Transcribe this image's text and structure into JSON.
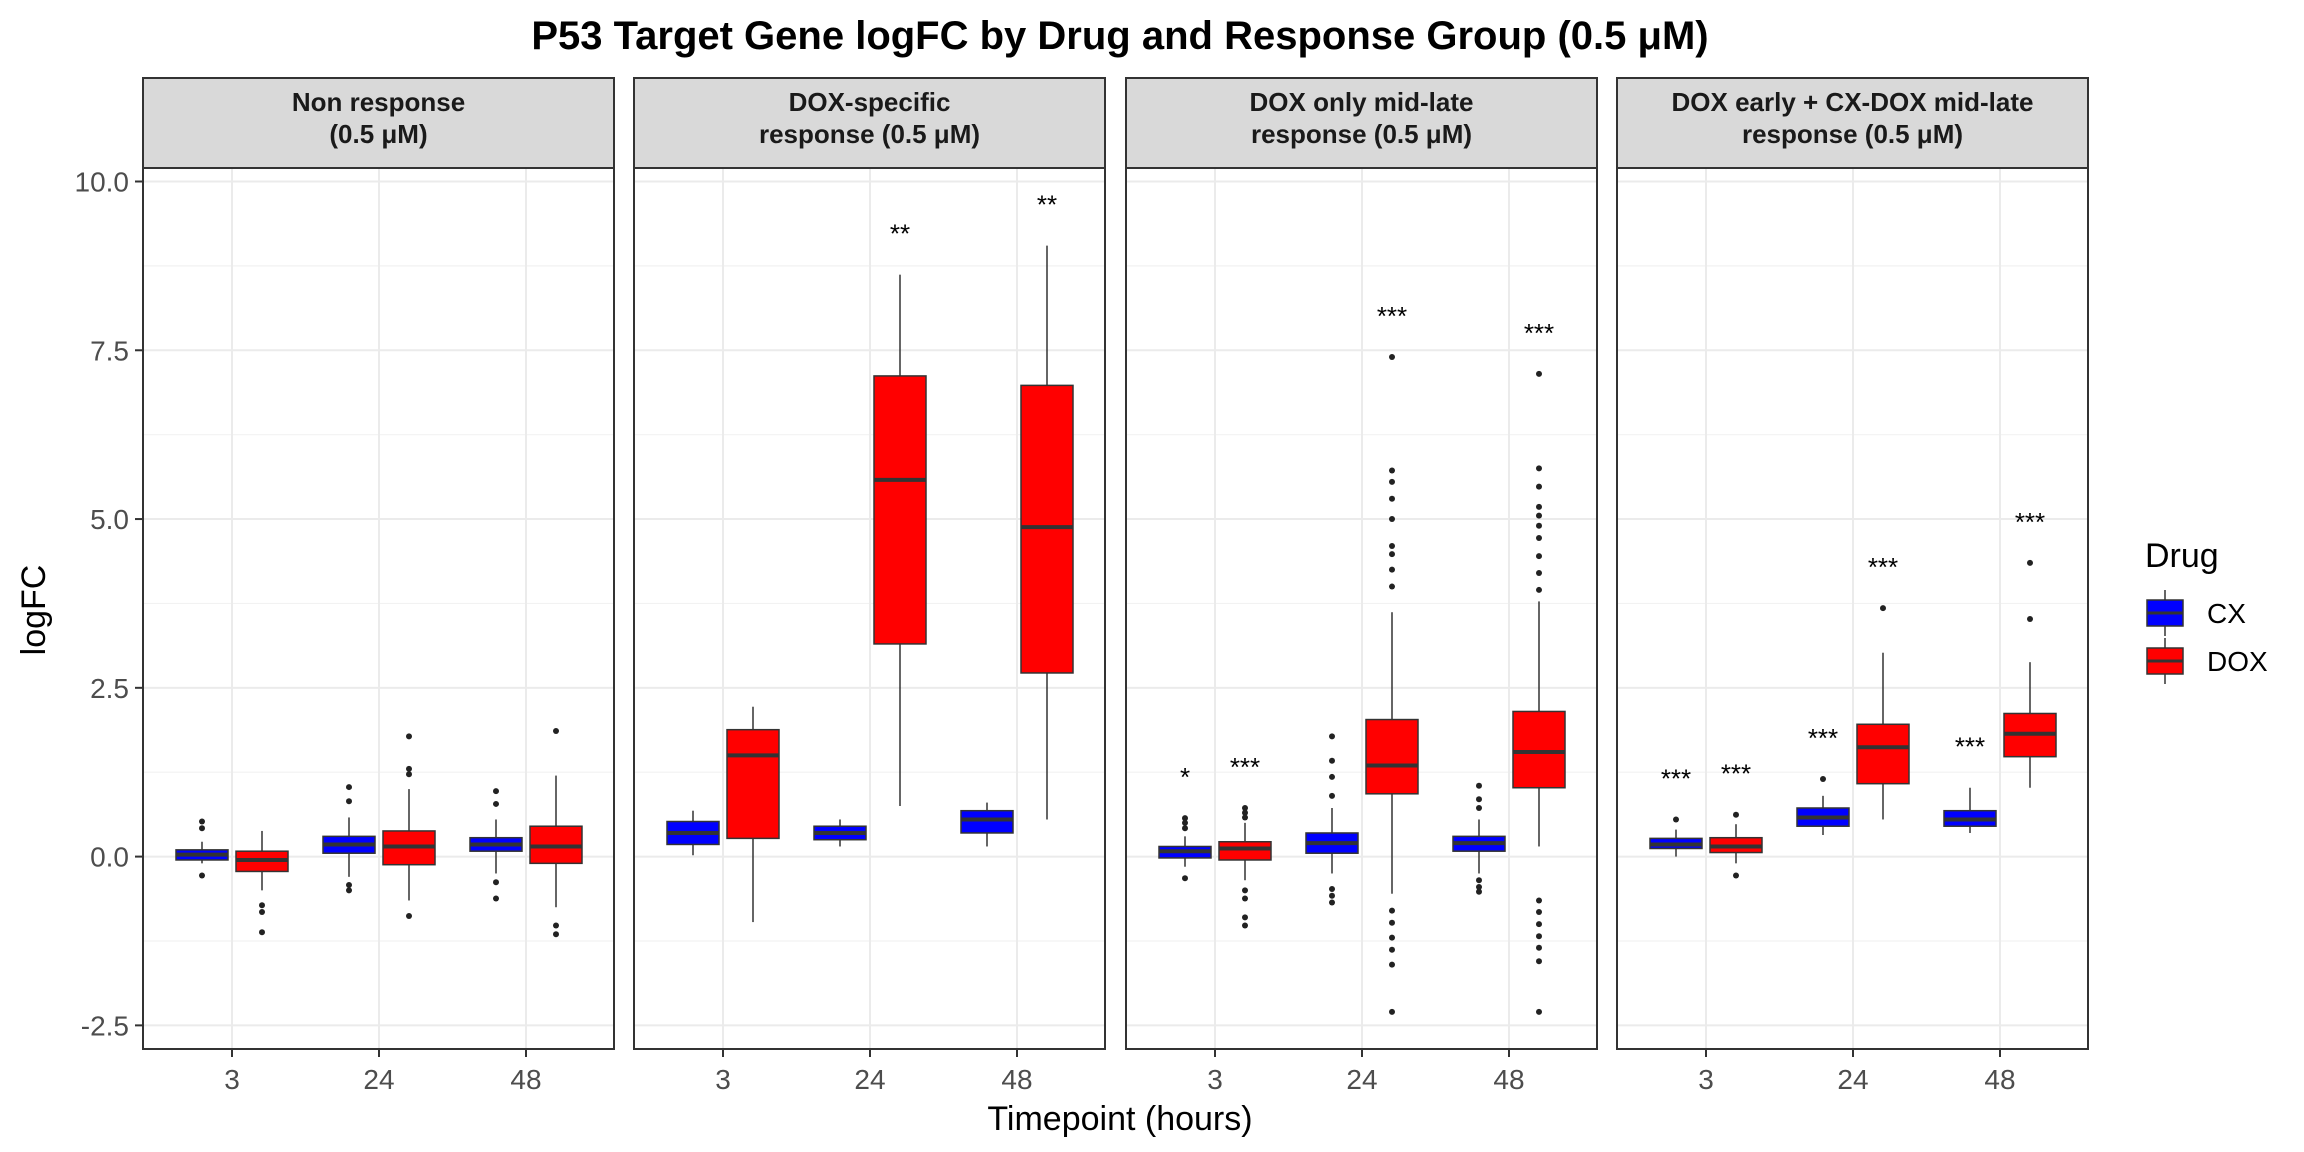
{
  "chart_data": {
    "type": "boxplot",
    "title": "P53 Target Gene logFC by Drug and Response Group (0.5 μM)",
    "xlabel": "Timepoint (hours)",
    "ylabel": "logFC",
    "ylim": [
      -2.85,
      10.2
    ],
    "yticks": [
      -2.5,
      0.0,
      2.5,
      5.0,
      7.5,
      10.0
    ],
    "ytick_labels": [
      "-2.5",
      "0.0",
      "2.5",
      "5.0",
      "7.5",
      "10.0"
    ],
    "categories": [
      "3",
      "24",
      "48"
    ],
    "grid": true,
    "legend": {
      "title": "Drug",
      "position": "right",
      "items": [
        {
          "label": "CX",
          "color": "#0000FF"
        },
        {
          "label": "DOX",
          "color": "#FF0000"
        }
      ]
    },
    "panels": [
      {
        "strip": [
          "Non response",
          "(0.5 μM)"
        ],
        "groups": [
          {
            "timepoint": "3",
            "drug": "CX",
            "whisker_low": -0.1,
            "q1": -0.05,
            "median": 0.03,
            "q3": 0.1,
            "whisker_high": 0.22,
            "outliers": [
              0.42,
              0.52,
              -0.28
            ],
            "sig": ""
          },
          {
            "timepoint": "3",
            "drug": "DOX",
            "whisker_low": -0.5,
            "q1": -0.22,
            "median": -0.05,
            "q3": 0.08,
            "whisker_high": 0.38,
            "outliers": [
              -0.72,
              -0.82,
              -1.12
            ],
            "sig": ""
          },
          {
            "timepoint": "24",
            "drug": "CX",
            "whisker_low": -0.3,
            "q1": 0.05,
            "median": 0.18,
            "q3": 0.3,
            "whisker_high": 0.58,
            "outliers": [
              0.82,
              1.03,
              -0.42,
              -0.5
            ],
            "sig": ""
          },
          {
            "timepoint": "24",
            "drug": "DOX",
            "whisker_low": -0.65,
            "q1": -0.12,
            "median": 0.15,
            "q3": 0.38,
            "whisker_high": 1.0,
            "outliers": [
              1.22,
              1.3,
              1.78,
              -0.88
            ],
            "sig": ""
          },
          {
            "timepoint": "48",
            "drug": "CX",
            "whisker_low": -0.25,
            "q1": 0.08,
            "median": 0.18,
            "q3": 0.28,
            "whisker_high": 0.55,
            "outliers": [
              0.78,
              0.97,
              -0.38,
              -0.62
            ],
            "sig": ""
          },
          {
            "timepoint": "48",
            "drug": "DOX",
            "whisker_low": -0.75,
            "q1": -0.1,
            "median": 0.15,
            "q3": 0.45,
            "whisker_high": 1.2,
            "outliers": [
              1.86,
              -1.02,
              -1.15
            ],
            "sig": ""
          }
        ]
      },
      {
        "strip": [
          "DOX-specific",
          "response (0.5 μM)"
        ],
        "groups": [
          {
            "timepoint": "3",
            "drug": "CX",
            "whisker_low": 0.02,
            "q1": 0.18,
            "median": 0.35,
            "q3": 0.52,
            "whisker_high": 0.68,
            "outliers": [],
            "sig": ""
          },
          {
            "timepoint": "3",
            "drug": "DOX",
            "whisker_low": -0.97,
            "q1": 0.27,
            "median": 1.5,
            "q3": 1.88,
            "whisker_high": 2.22,
            "outliers": [],
            "sig": ""
          },
          {
            "timepoint": "24",
            "drug": "CX",
            "whisker_low": 0.15,
            "q1": 0.25,
            "median": 0.35,
            "q3": 0.45,
            "whisker_high": 0.55,
            "outliers": [],
            "sig": ""
          },
          {
            "timepoint": "24",
            "drug": "DOX",
            "whisker_low": 0.75,
            "q1": 3.15,
            "median": 5.58,
            "q3": 7.12,
            "whisker_high": 8.62,
            "outliers": [],
            "sig": "**"
          },
          {
            "timepoint": "48",
            "drug": "CX",
            "whisker_low": 0.15,
            "q1": 0.35,
            "median": 0.55,
            "q3": 0.68,
            "whisker_high": 0.8,
            "outliers": [],
            "sig": ""
          },
          {
            "timepoint": "48",
            "drug": "DOX",
            "whisker_low": 0.55,
            "q1": 2.72,
            "median": 4.88,
            "q3": 6.98,
            "whisker_high": 9.05,
            "outliers": [],
            "sig": "**"
          }
        ]
      },
      {
        "strip": [
          "DOX only mid-late",
          "response (0.5 μM)"
        ],
        "groups": [
          {
            "timepoint": "3",
            "drug": "CX",
            "whisker_low": -0.15,
            "q1": -0.02,
            "median": 0.08,
            "q3": 0.15,
            "whisker_high": 0.3,
            "outliers": [
              0.42,
              0.5,
              0.57,
              -0.32
            ],
            "sig": "*"
          },
          {
            "timepoint": "3",
            "drug": "DOX",
            "whisker_low": -0.35,
            "q1": -0.05,
            "median": 0.12,
            "q3": 0.22,
            "whisker_high": 0.5,
            "outliers": [
              0.58,
              0.65,
              0.72,
              -0.5,
              -0.62,
              -0.9,
              -1.02
            ],
            "sig": "***"
          },
          {
            "timepoint": "24",
            "drug": "CX",
            "whisker_low": -0.25,
            "q1": 0.05,
            "median": 0.2,
            "q3": 0.35,
            "whisker_high": 0.72,
            "outliers": [
              0.9,
              1.18,
              1.42,
              1.78,
              -0.48,
              -0.58,
              -0.68
            ],
            "sig": ""
          },
          {
            "timepoint": "24",
            "drug": "DOX",
            "whisker_low": -0.55,
            "q1": 0.93,
            "median": 1.35,
            "q3": 2.03,
            "whisker_high": 3.62,
            "outliers": [
              4.0,
              4.25,
              4.48,
              4.6,
              5.0,
              5.3,
              5.55,
              5.72,
              7.4,
              -0.8,
              -0.98,
              -1.2,
              -1.38,
              -1.6,
              -2.3
            ],
            "sig": "***"
          },
          {
            "timepoint": "48",
            "drug": "CX",
            "whisker_low": -0.25,
            "q1": 0.08,
            "median": 0.2,
            "q3": 0.3,
            "whisker_high": 0.55,
            "outliers": [
              0.72,
              0.85,
              1.05,
              -0.35,
              -0.45,
              -0.52
            ],
            "sig": ""
          },
          {
            "timepoint": "48",
            "drug": "DOX",
            "whisker_low": 0.15,
            "q1": 1.02,
            "median": 1.55,
            "q3": 2.15,
            "whisker_high": 3.78,
            "outliers": [
              3.95,
              4.2,
              4.45,
              4.72,
              4.9,
              5.05,
              5.18,
              5.48,
              5.75,
              7.15,
              -0.65,
              -0.82,
              -1.0,
              -1.18,
              -1.35,
              -1.55,
              -2.3
            ],
            "sig": "***"
          }
        ]
      },
      {
        "strip": [
          "DOX early + CX-DOX mid-late",
          "response (0.5 μM)"
        ],
        "groups": [
          {
            "timepoint": "3",
            "drug": "CX",
            "whisker_low": 0.0,
            "q1": 0.12,
            "median": 0.18,
            "q3": 0.27,
            "whisker_high": 0.4,
            "outliers": [
              0.55
            ],
            "sig": "***"
          },
          {
            "timepoint": "3",
            "drug": "DOX",
            "whisker_low": -0.1,
            "q1": 0.06,
            "median": 0.15,
            "q3": 0.28,
            "whisker_high": 0.48,
            "outliers": [
              0.62,
              -0.28
            ],
            "sig": "***"
          },
          {
            "timepoint": "24",
            "drug": "CX",
            "whisker_low": 0.32,
            "q1": 0.45,
            "median": 0.58,
            "q3": 0.72,
            "whisker_high": 0.9,
            "outliers": [
              1.15
            ],
            "sig": "***"
          },
          {
            "timepoint": "24",
            "drug": "DOX",
            "whisker_low": 0.55,
            "q1": 1.08,
            "median": 1.62,
            "q3": 1.96,
            "whisker_high": 3.02,
            "outliers": [
              3.68
            ],
            "sig": "***"
          },
          {
            "timepoint": "48",
            "drug": "CX",
            "whisker_low": 0.35,
            "q1": 0.45,
            "median": 0.55,
            "q3": 0.68,
            "whisker_high": 1.02,
            "outliers": [],
            "sig": "***"
          },
          {
            "timepoint": "48",
            "drug": "DOX",
            "whisker_low": 1.02,
            "q1": 1.48,
            "median": 1.82,
            "q3": 2.12,
            "whisker_high": 2.88,
            "outliers": [
              3.52,
              4.35
            ],
            "sig": "***"
          }
        ]
      }
    ]
  }
}
